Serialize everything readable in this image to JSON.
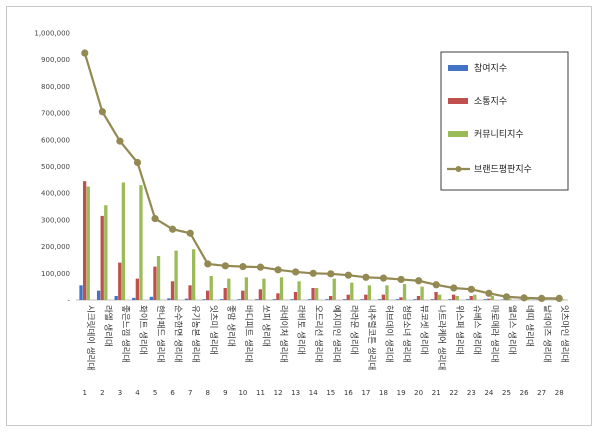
{
  "chart_data": {
    "type": "bar",
    "ylim": [
      0,
      1000000
    ],
    "yticks": [
      0,
      100000,
      200000,
      300000,
      400000,
      500000,
      600000,
      700000,
      800000,
      900000,
      1000000
    ],
    "ytick_labels": [
      "-",
      "100,000",
      "200,000",
      "300,000",
      "400,000",
      "500,000",
      "600,000",
      "700,000",
      "800,000",
      "900,000",
      "1,000,000"
    ],
    "categories": [
      "시크릿데이 생리대",
      "라엘 생리대",
      "좋은느낌 생리대",
      "화이트 생리대",
      "한나패드 생리대",
      "순수한면 생리대",
      "유기농본 생리대",
      "잇츠미 생리대",
      "좋맘 생리대",
      "바디피트 생리대",
      "쏘피 생리대",
      "라네이처 생리대",
      "라비토 생리대",
      "오드리선 생리대",
      "예지미인 생리대",
      "라라문 생리대",
      "내추럴코튼 생리대",
      "허브데이 생리대",
      "청담소녀 생리대",
      "뷰코셋 생리대",
      "나트라케어 생리대",
      "위스퍼 생리대",
      "슈베스 생리대",
      "마로메라 생리대",
      "엘리스 생리대",
      "네띠 생리대",
      "날데이즈 생리대",
      "잇츠마인 생리대"
    ],
    "ranks": [
      "1",
      "2",
      "3",
      "4",
      "5",
      "6",
      "7",
      "8",
      "9",
      "10",
      "11",
      "12",
      "13",
      "14",
      "15",
      "16",
      "17",
      "18",
      "19",
      "20",
      "21",
      "22",
      "23",
      "24",
      "25",
      "26",
      "27",
      "28"
    ],
    "series": [
      {
        "name": "참여지수",
        "color": "#4472c4",
        "kind": "bar",
        "values": [
          55000,
          35000,
          15000,
          8000,
          12000,
          6000,
          5000,
          3000,
          3000,
          3000,
          3000,
          3000,
          3000,
          3000,
          3000,
          3000,
          3000,
          3000,
          3000,
          3000,
          3000,
          3000,
          3000,
          3000,
          2000,
          1000,
          1000,
          1000
        ]
      },
      {
        "name": "소통지수",
        "color": "#c0504d",
        "kind": "bar",
        "values": [
          445000,
          315000,
          140000,
          80000,
          125000,
          70000,
          55000,
          35000,
          45000,
          35000,
          40000,
          25000,
          30000,
          45000,
          15000,
          20000,
          20000,
          20000,
          10000,
          15000,
          30000,
          20000,
          15000,
          5000,
          5000,
          3000,
          2000,
          2000
        ]
      },
      {
        "name": "커뮤니티지수",
        "color": "#9bbb59",
        "kind": "bar",
        "values": [
          425000,
          355000,
          440000,
          430000,
          165000,
          185000,
          190000,
          90000,
          80000,
          85000,
          80000,
          85000,
          70000,
          45000,
          80000,
          65000,
          55000,
          55000,
          60000,
          50000,
          20000,
          15000,
          20000,
          15000,
          5000,
          4000,
          3000,
          3000
        ]
      },
      {
        "name": "브랜드평판지수",
        "color": "#938953",
        "kind": "line",
        "values": [
          925000,
          705000,
          595000,
          515000,
          305000,
          265000,
          250000,
          135000,
          128000,
          125000,
          123000,
          113000,
          105000,
          100000,
          98000,
          93000,
          85000,
          82000,
          77000,
          72000,
          57000,
          45000,
          40000,
          25000,
          12000,
          8000,
          6000,
          6000
        ]
      }
    ],
    "legend": {
      "position": "right"
    },
    "grid": false
  }
}
